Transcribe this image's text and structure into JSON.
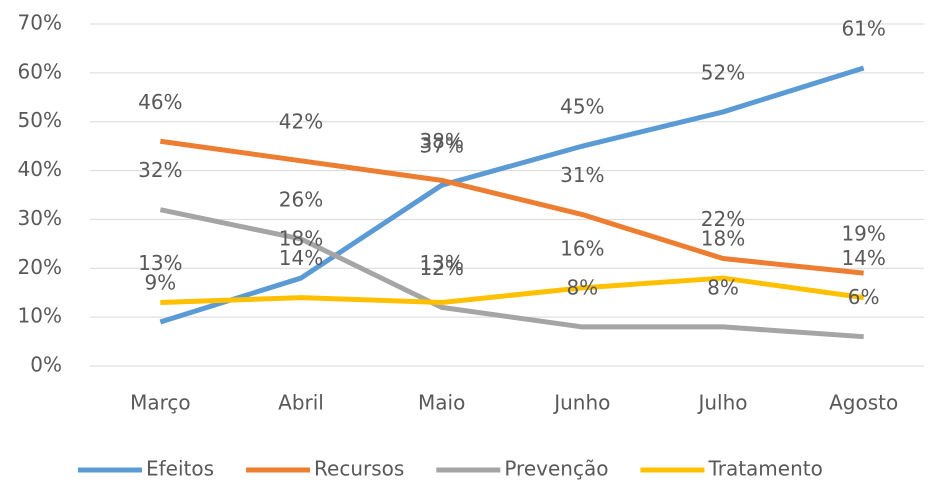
{
  "chart_data": {
    "type": "line",
    "categories": [
      "Março",
      "Abril",
      "Maio",
      "Junho",
      "Julho",
      "Agosto"
    ],
    "series": [
      {
        "name": "Efeitos",
        "color": "#5b9bd5",
        "values": [
          9,
          18,
          37,
          45,
          52,
          61
        ],
        "value_labels": [
          "9%",
          "18%",
          "37%",
          "45%",
          "52%",
          "61%"
        ]
      },
      {
        "name": "Recursos",
        "color": "#ed7d31",
        "values": [
          46,
          42,
          38,
          31,
          22,
          19
        ],
        "value_labels": [
          "46%",
          "42%",
          "38%",
          "31%",
          "22%",
          "19%"
        ]
      },
      {
        "name": "Prevenção",
        "color": "#a5a5a5",
        "values": [
          32,
          26,
          12,
          8,
          8,
          6
        ],
        "value_labels": [
          "32%",
          "26%",
          "12%",
          "8%",
          "8%",
          "6%"
        ]
      },
      {
        "name": "Tratamento",
        "color": "#ffc000",
        "values": [
          13,
          14,
          13,
          16,
          18,
          14
        ],
        "value_labels": [
          "13%",
          "14%",
          "13%",
          "16%",
          "18%",
          "14%"
        ]
      }
    ],
    "ylim": [
      0,
      70
    ],
    "yticks": [
      {
        "value": 0,
        "label": "0%"
      },
      {
        "value": 10,
        "label": "10%"
      },
      {
        "value": 20,
        "label": "20%"
      },
      {
        "value": 30,
        "label": "30%"
      },
      {
        "value": 40,
        "label": "40%"
      },
      {
        "value": 50,
        "label": "50%"
      },
      {
        "value": 60,
        "label": "60%"
      },
      {
        "value": 70,
        "label": "70%"
      }
    ],
    "grid": true,
    "legend": "bottom"
  }
}
